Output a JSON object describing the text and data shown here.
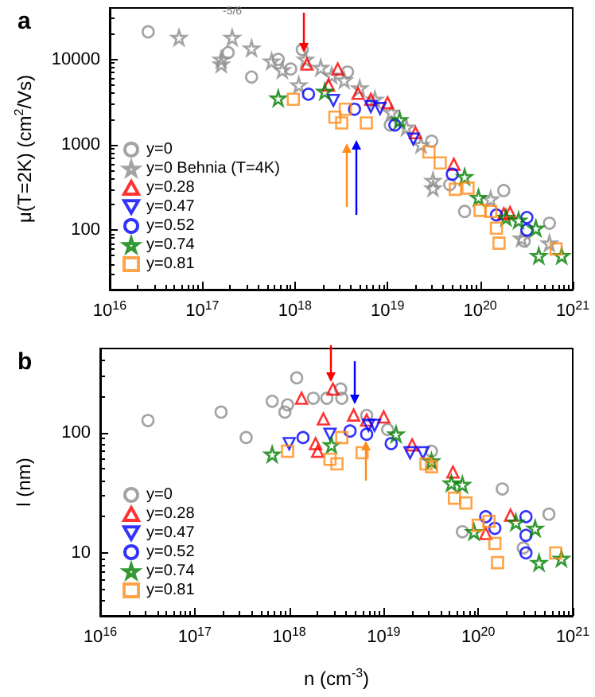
{
  "chart_data": [
    {
      "type": "scatter",
      "title": "a",
      "ylabel": "μ(T=2K) (cm$^{2}$/Vs)",
      "annotations": [
        "-5/6"
      ],
      "log": "xy",
      "grid": false,
      "legend": "bottom left",
      "xlim": [
        1e+16,
        1e+21
      ],
      "xticks": [
        {
          "value": 1e+16,
          "label": "10$^{16}$"
        },
        {
          "value": 1e+17,
          "label": "10$^{17}$"
        },
        {
          "value": 1e+18,
          "label": "10$^{18}$"
        },
        {
          "value": 1e+19,
          "label": "10$^{19}$"
        },
        {
          "value": 1e+20,
          "label": "10$^{20}$"
        },
        {
          "value": 1e+21,
          "label": "10$^{21}$"
        }
      ],
      "ylim": [
        20,
        40000
      ],
      "yticks": [
        100,
        1000,
        10000
      ],
      "series": [
        {
          "name": "y=0",
          "color": "#8c8c8c",
          "marker": "circle",
          "x": [
            2.6e+16,
            1.9e+17,
            3.4e+17,
            6.6e+17,
            9e+17,
            1.2e+18,
            3.7e+18,
            1.07e+19,
            3e+19,
            4.7e+19,
            6.8e+19,
            1.8e+20,
            3e+20,
            5.6e+20
          ],
          "values": [
            21000,
            12000,
            6200,
            10000,
            7700,
            13000,
            7100,
            1700,
            1100,
            340,
            165,
            290,
            74,
            120
          ]
        },
        {
          "name": "y=0 Behnia (T=4K)",
          "color": "#8c8c8c",
          "marker": "star",
          "x": [
            5.6e+16,
            1.6e+17,
            1.6e+17,
            2.1e+17,
            3.4e+17,
            5.6e+17,
            7.3e+17,
            1.1e+18,
            1.3e+18,
            1.9e+18,
            2.5e+18,
            3.4e+18,
            5e+18,
            7.3e+18,
            1.1e+19,
            1.6e+19,
            2.3e+19,
            3.1e+19,
            3.1e+19,
            1.3e+20,
            2.8e+20,
            5.6e+20
          ],
          "values": [
            18000,
            10000,
            8800,
            18000,
            13500,
            9500,
            7500,
            5000,
            10000,
            8000,
            6500,
            5700,
            4600,
            3400,
            2400,
            1600,
            1000,
            380,
            310,
            230,
            80,
            70
          ]
        },
        {
          "name": "y=0.28",
          "color": "#ff0000",
          "marker": "triangle",
          "x": [
            1.35e+18,
            2.3e+18,
            2.9e+18,
            4.8e+18,
            6.6e+18,
            1e+19,
            2e+19,
            5.2e+19,
            1.8e+20,
            2.1e+20
          ],
          "values": [
            8800,
            5000,
            7700,
            4000,
            3400,
            3100,
            1380,
            590,
            155,
            160
          ]
        },
        {
          "name": "y=0.47",
          "color": "#0000ff",
          "marker": "triangle-down",
          "x": [
            2.6e+18,
            6.6e+18,
            8.3e+18,
            1.9e+19
          ],
          "values": [
            3300,
            2800,
            2650,
            1160
          ]
        },
        {
          "name": "y=0.52",
          "color": "#0000ff",
          "marker": "circle",
          "x": [
            1.4e+18,
            4.4e+18,
            1.2e+19,
            5e+19,
            1.5e+20,
            3.2e+20,
            3.2e+20
          ],
          "values": [
            3900,
            2600,
            1700,
            450,
            150,
            140,
            100
          ]
        },
        {
          "name": "y=0.74",
          "color": "#008000",
          "marker": "star",
          "x": [
            6.6e+17,
            2.1e+18,
            1.35e+19,
            6.8e+19,
            9.6e+19,
            1.9e+20,
            2.6e+20,
            4e+20,
            4.3e+20,
            7.6e+20
          ],
          "values": [
            3500,
            4200,
            1950,
            420,
            240,
            140,
            130,
            105,
            50,
            50
          ]
        },
        {
          "name": "y=0.81",
          "color": "#ff8c1a",
          "marker": "square",
          "x": [
            9.6e+17,
            2.7e+18,
            3.2e+18,
            3.5e+18,
            5.9e+18,
            2.8e+19,
            3.7e+19,
            5.4e+19,
            7.4e+19,
            1e+20,
            1.3e+20,
            1.5e+20,
            1.6e+20,
            6.6e+20
          ],
          "values": [
            3400,
            2100,
            1800,
            2600,
            1800,
            820,
            610,
            300,
            310,
            170,
            165,
            105,
            70,
            60
          ]
        }
      ]
    },
    {
      "type": "scatter",
      "title": "b",
      "xlabel": "n (cm$^{-3}$)",
      "ylabel": "l (nm)",
      "log": "xy",
      "grid": false,
      "legend": "bottom left",
      "xlim": [
        1e+16,
        1e+21
      ],
      "xticks": [
        {
          "value": 1e+16,
          "label": "10$^{16}$"
        },
        {
          "value": 1e+17,
          "label": "10$^{17}$"
        },
        {
          "value": 1e+18,
          "label": "10$^{18}$"
        },
        {
          "value": 1e+19,
          "label": "10$^{19}$"
        },
        {
          "value": 1e+20,
          "label": "10$^{20}$"
        },
        {
          "value": 1e+21,
          "label": "10$^{21}$"
        }
      ],
      "ylim": [
        3,
        500
      ],
      "yticks": [
        10,
        100
      ],
      "series": [
        {
          "name": "y=0",
          "color": "#8c8c8c",
          "marker": "circle",
          "x": [
            3.2e+16,
            1.9e+17,
            3.5e+17,
            6.6e+17,
            9e+17,
            9.6e+17,
            1.2e+18,
            1.8e+18,
            2.5e+18,
            3.5e+18,
            3.6e+18,
            6.6e+18,
            1.1e+19,
            3.2e+19,
            6.8e+19,
            1.8e+20,
            3e+20,
            5.6e+20
          ],
          "values": [
            126,
            148,
            91,
            182,
            148,
            170,
            285,
            193,
            193,
            230,
            193,
            139,
            106,
            70,
            15,
            34,
            11,
            21
          ]
        },
        {
          "name": "y=0.28",
          "color": "#ff0000",
          "marker": "triangle",
          "x": [
            1.35e+18,
            1.9e+18,
            2e+18,
            2.3e+18,
            2.9e+18,
            4.8e+18,
            6.6e+18,
            1e+19,
            2e+19,
            5.4e+19,
            1.2e+20,
            2.2e+20
          ],
          "values": [
            193,
            81,
            70,
            130,
            230,
            140,
            127,
            135,
            79,
            47,
            14.5,
            20.6
          ]
        },
        {
          "name": "y=0.47",
          "color": "#0000ff",
          "marker": "triangle-down",
          "x": [
            1e+18,
            2.7e+18,
            6.9e+18,
            8e+18,
            1.9e+19,
            2.6e+19
          ],
          "values": [
            81,
            97,
            115,
            115,
            68,
            68
          ]
        },
        {
          "name": "y=0.52",
          "color": "#0000ff",
          "marker": "circle",
          "x": [
            1.4e+18,
            4.4e+18,
            6.6e+18,
            1.2e+19,
            1.2e+20,
            1.5e+20,
            3.2e+20,
            3.2e+20,
            3.2e+20
          ],
          "values": [
            91,
            103,
            97,
            81,
            20,
            16,
            20,
            14,
            10
          ]
        },
        {
          "name": "y=0.74",
          "color": "#008000",
          "marker": "star",
          "x": [
            6.6e+17,
            2.8e+18,
            1.35e+19,
            3.2e+19,
            5.2e+19,
            6.8e+19,
            9e+19,
            2.5e+20,
            4e+20,
            4.4e+20,
            7.6e+20
          ],
          "values": [
            66,
            79,
            97,
            58,
            38,
            37,
            15,
            18,
            16,
            8.3,
            9
          ]
        },
        {
          "name": "y=0.81",
          "color": "#ff8c1a",
          "marker": "square",
          "x": [
            9.6e+17,
            2.7e+18,
            3.2e+18,
            3.6e+18,
            5.9e+18,
            2.8e+19,
            3.2e+19,
            5.6e+19,
            7.4e+19,
            1e+20,
            1.3e+20,
            1.5e+20,
            1.6e+20,
            6.6e+20
          ],
          "values": [
            70,
            60,
            55,
            91,
            68,
            55,
            52,
            28.5,
            26,
            17,
            18.3,
            12,
            8.3,
            10
          ]
        }
      ]
    }
  ]
}
